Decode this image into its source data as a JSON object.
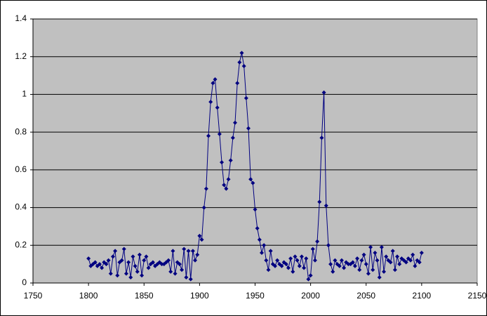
{
  "chart_data": {
    "type": "line",
    "x": [
      1800,
      1802,
      1804,
      1806,
      1808,
      1810,
      1812,
      1814,
      1816,
      1818,
      1820,
      1822,
      1824,
      1826,
      1828,
      1830,
      1832,
      1834,
      1836,
      1838,
      1840,
      1842,
      1844,
      1846,
      1848,
      1850,
      1852,
      1854,
      1856,
      1858,
      1860,
      1862,
      1864,
      1866,
      1868,
      1870,
      1872,
      1874,
      1876,
      1878,
      1880,
      1882,
      1884,
      1886,
      1888,
      1890,
      1892,
      1894,
      1896,
      1898,
      1900,
      1902,
      1904,
      1906,
      1908,
      1910,
      1912,
      1914,
      1916,
      1918,
      1920,
      1922,
      1924,
      1926,
      1928,
      1930,
      1932,
      1934,
      1936,
      1938,
      1940,
      1942,
      1944,
      1946,
      1948,
      1950,
      1952,
      1954,
      1956,
      1958,
      1960,
      1962,
      1964,
      1966,
      1968,
      1970,
      1972,
      1974,
      1976,
      1978,
      1980,
      1982,
      1984,
      1986,
      1988,
      1990,
      1992,
      1994,
      1996,
      1998,
      2000,
      2002,
      2004,
      2006,
      2008,
      2010,
      2012,
      2014,
      2016,
      2018,
      2020,
      2022,
      2024,
      2026,
      2028,
      2030,
      2032,
      2034,
      2036,
      2038,
      2040,
      2042,
      2044,
      2046,
      2048,
      2050,
      2052,
      2054,
      2056,
      2058,
      2060,
      2062,
      2064,
      2066,
      2068,
      2070,
      2072,
      2074,
      2076,
      2078,
      2080,
      2082,
      2084,
      2086,
      2088,
      2090,
      2092,
      2094,
      2096,
      2098,
      2100
    ],
    "series": [
      {
        "color": "#000080",
        "values": [
          0.13,
          0.09,
          0.1,
          0.11,
          0.09,
          0.1,
          0.08,
          0.11,
          0.1,
          0.12,
          0.05,
          0.14,
          0.17,
          0.04,
          0.11,
          0.12,
          0.18,
          0.05,
          0.11,
          0.03,
          0.14,
          0.09,
          0.06,
          0.15,
          0.04,
          0.12,
          0.14,
          0.08,
          0.1,
          0.11,
          0.09,
          0.1,
          0.11,
          0.1,
          0.1,
          0.11,
          0.12,
          0.06,
          0.17,
          0.05,
          0.11,
          0.1,
          0.07,
          0.18,
          0.03,
          0.17,
          0.02,
          0.17,
          0.12,
          0.15,
          0.25,
          0.23,
          0.4,
          0.5,
          0.78,
          0.96,
          1.06,
          1.08,
          0.93,
          0.79,
          0.64,
          0.52,
          0.5,
          0.55,
          0.65,
          0.77,
          0.85,
          1.06,
          1.17,
          1.22,
          1.15,
          0.98,
          0.82,
          0.55,
          0.53,
          0.39,
          0.29,
          0.23,
          0.16,
          0.2,
          0.12,
          0.07,
          0.17,
          0.1,
          0.09,
          0.12,
          0.1,
          0.09,
          0.11,
          0.1,
          0.08,
          0.13,
          0.06,
          0.14,
          0.12,
          0.09,
          0.14,
          0.08,
          0.13,
          0.02,
          0.04,
          0.18,
          0.12,
          0.22,
          0.43,
          0.77,
          1.01,
          0.41,
          0.2,
          0.1,
          0.06,
          0.12,
          0.1,
          0.09,
          0.12,
          0.08,
          0.11,
          0.1,
          0.1,
          0.11,
          0.09,
          0.13,
          0.07,
          0.12,
          0.15,
          0.1,
          0.05,
          0.19,
          0.07,
          0.16,
          0.12,
          0.03,
          0.19,
          0.06,
          0.14,
          0.12,
          0.11,
          0.17,
          0.07,
          0.14,
          0.1,
          0.13,
          0.12,
          0.11,
          0.13,
          0.12,
          0.15,
          0.09,
          0.12,
          0.11,
          0.16
        ]
      }
    ],
    "xlim": [
      1750,
      2150
    ],
    "xticks": [
      1750,
      1800,
      1850,
      1900,
      1950,
      2000,
      2050,
      2100,
      2150
    ],
    "ylim": [
      0,
      1.4
    ],
    "yticks": [
      0,
      0.2,
      0.4,
      0.6,
      0.8,
      1,
      1.2,
      1.4
    ],
    "grid": true,
    "plot_background": "#c0c0c0"
  }
}
